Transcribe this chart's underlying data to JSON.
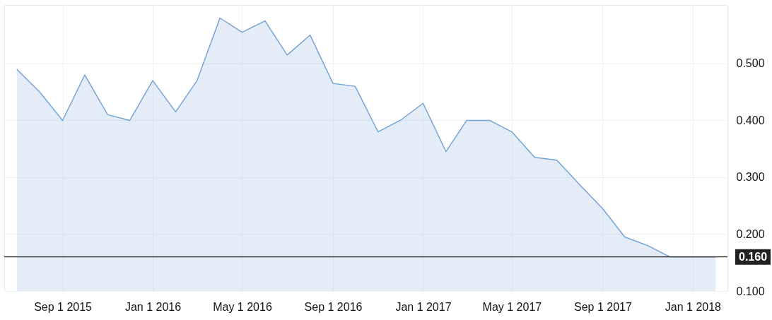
{
  "chart_data": {
    "type": "area",
    "x": [
      "2015-07",
      "2015-08",
      "2015-09",
      "2015-10",
      "2015-11",
      "2015-12",
      "2016-01",
      "2016-02",
      "2016-03",
      "2016-04",
      "2016-05",
      "2016-06",
      "2016-07",
      "2016-08",
      "2016-09",
      "2016-10",
      "2016-11",
      "2016-12",
      "2017-01",
      "2017-02",
      "2017-03",
      "2017-04",
      "2017-05",
      "2017-06",
      "2017-07",
      "2017-08",
      "2017-09",
      "2017-10",
      "2017-11",
      "2017-12",
      "2018-01",
      "2018-02"
    ],
    "series": [
      {
        "color": "#6fa0d6",
        "values": [
          0.49,
          0.45,
          0.4,
          0.48,
          0.41,
          0.4,
          0.47,
          0.415,
          0.47,
          0.58,
          0.555,
          0.575,
          0.515,
          0.55,
          0.465,
          0.46,
          0.38,
          0.4,
          0.43,
          0.345,
          0.4,
          0.4,
          0.38,
          0.335,
          0.33,
          0.287,
          0.245,
          0.195,
          0.18,
          0.16,
          0.16,
          0.16
        ]
      }
    ],
    "xlim": [
      "2015-06-14",
      "2018-02-17"
    ],
    "xticks": [
      {
        "value": "2015-09-01",
        "label": "Sep 1 2015"
      },
      {
        "value": "2016-01-01",
        "label": "Jan 1 2016"
      },
      {
        "value": "2016-05-01",
        "label": "May 1 2016"
      },
      {
        "value": "2016-09-01",
        "label": "Sep 1 2016"
      },
      {
        "value": "2017-01-01",
        "label": "Jan 1 2017"
      },
      {
        "value": "2017-05-01",
        "label": "May 1 2017"
      },
      {
        "value": "2017-09-01",
        "label": "Sep 1 2017"
      },
      {
        "value": "2018-01-01",
        "label": "Jan 1 2018"
      }
    ],
    "ylim": [
      0.1,
      0.603
    ],
    "yticks": [
      {
        "value": 0.1,
        "label": "0.100"
      },
      {
        "value": 0.2,
        "label": "0.200"
      },
      {
        "value": 0.3,
        "label": "0.300"
      },
      {
        "value": 0.4,
        "label": "0.400"
      },
      {
        "value": 0.5,
        "label": "0.500"
      }
    ],
    "ref_lines": [
      {
        "axis": "y",
        "value": 0.16,
        "label": "0.160",
        "color": "#222222"
      }
    ],
    "grid": true
  }
}
